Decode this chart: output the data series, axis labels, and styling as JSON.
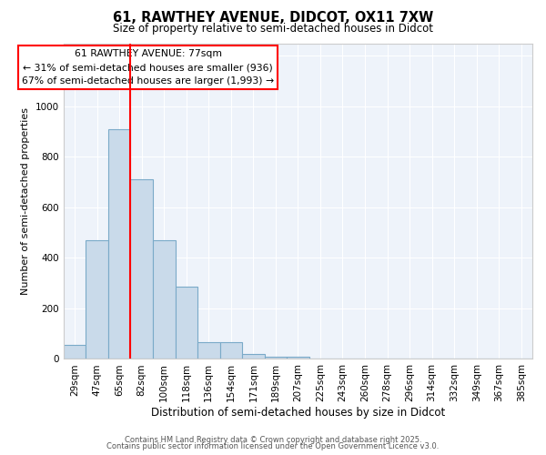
{
  "title_line1": "61, RAWTHEY AVENUE, DIDCOT, OX11 7XW",
  "title_line2": "Size of property relative to semi-detached houses in Didcot",
  "xlabel": "Distribution of semi-detached houses by size in Didcot",
  "ylabel": "Number of semi-detached properties",
  "bin_labels": [
    "29sqm",
    "47sqm",
    "65sqm",
    "82sqm",
    "100sqm",
    "118sqm",
    "136sqm",
    "154sqm",
    "171sqm",
    "189sqm",
    "207sqm",
    "225sqm",
    "243sqm",
    "260sqm",
    "278sqm",
    "296sqm",
    "314sqm",
    "332sqm",
    "349sqm",
    "367sqm",
    "385sqm"
  ],
  "bar_values": [
    55,
    470,
    910,
    710,
    470,
    285,
    65,
    65,
    20,
    10,
    10,
    0,
    0,
    0,
    0,
    0,
    0,
    0,
    0,
    0,
    0
  ],
  "bar_color": "#c9daea",
  "bar_edge_color": "#7aaac8",
  "red_line_x": 3.0,
  "annotation_title": "61 RAWTHEY AVENUE: 77sqm",
  "annotation_line2": "← 31% of semi-detached houses are smaller (936)",
  "annotation_line3": "67% of semi-detached houses are larger (1,993) →",
  "ylim": [
    0,
    1250
  ],
  "yticks": [
    0,
    200,
    400,
    600,
    800,
    1000,
    1200
  ],
  "footer_line1": "Contains HM Land Registry data © Crown copyright and database right 2025.",
  "footer_line2": "Contains public sector information licensed under the Open Government Licence v3.0.",
  "fig_bg_color": "#ffffff",
  "plot_bg_color": "#eef3fa"
}
